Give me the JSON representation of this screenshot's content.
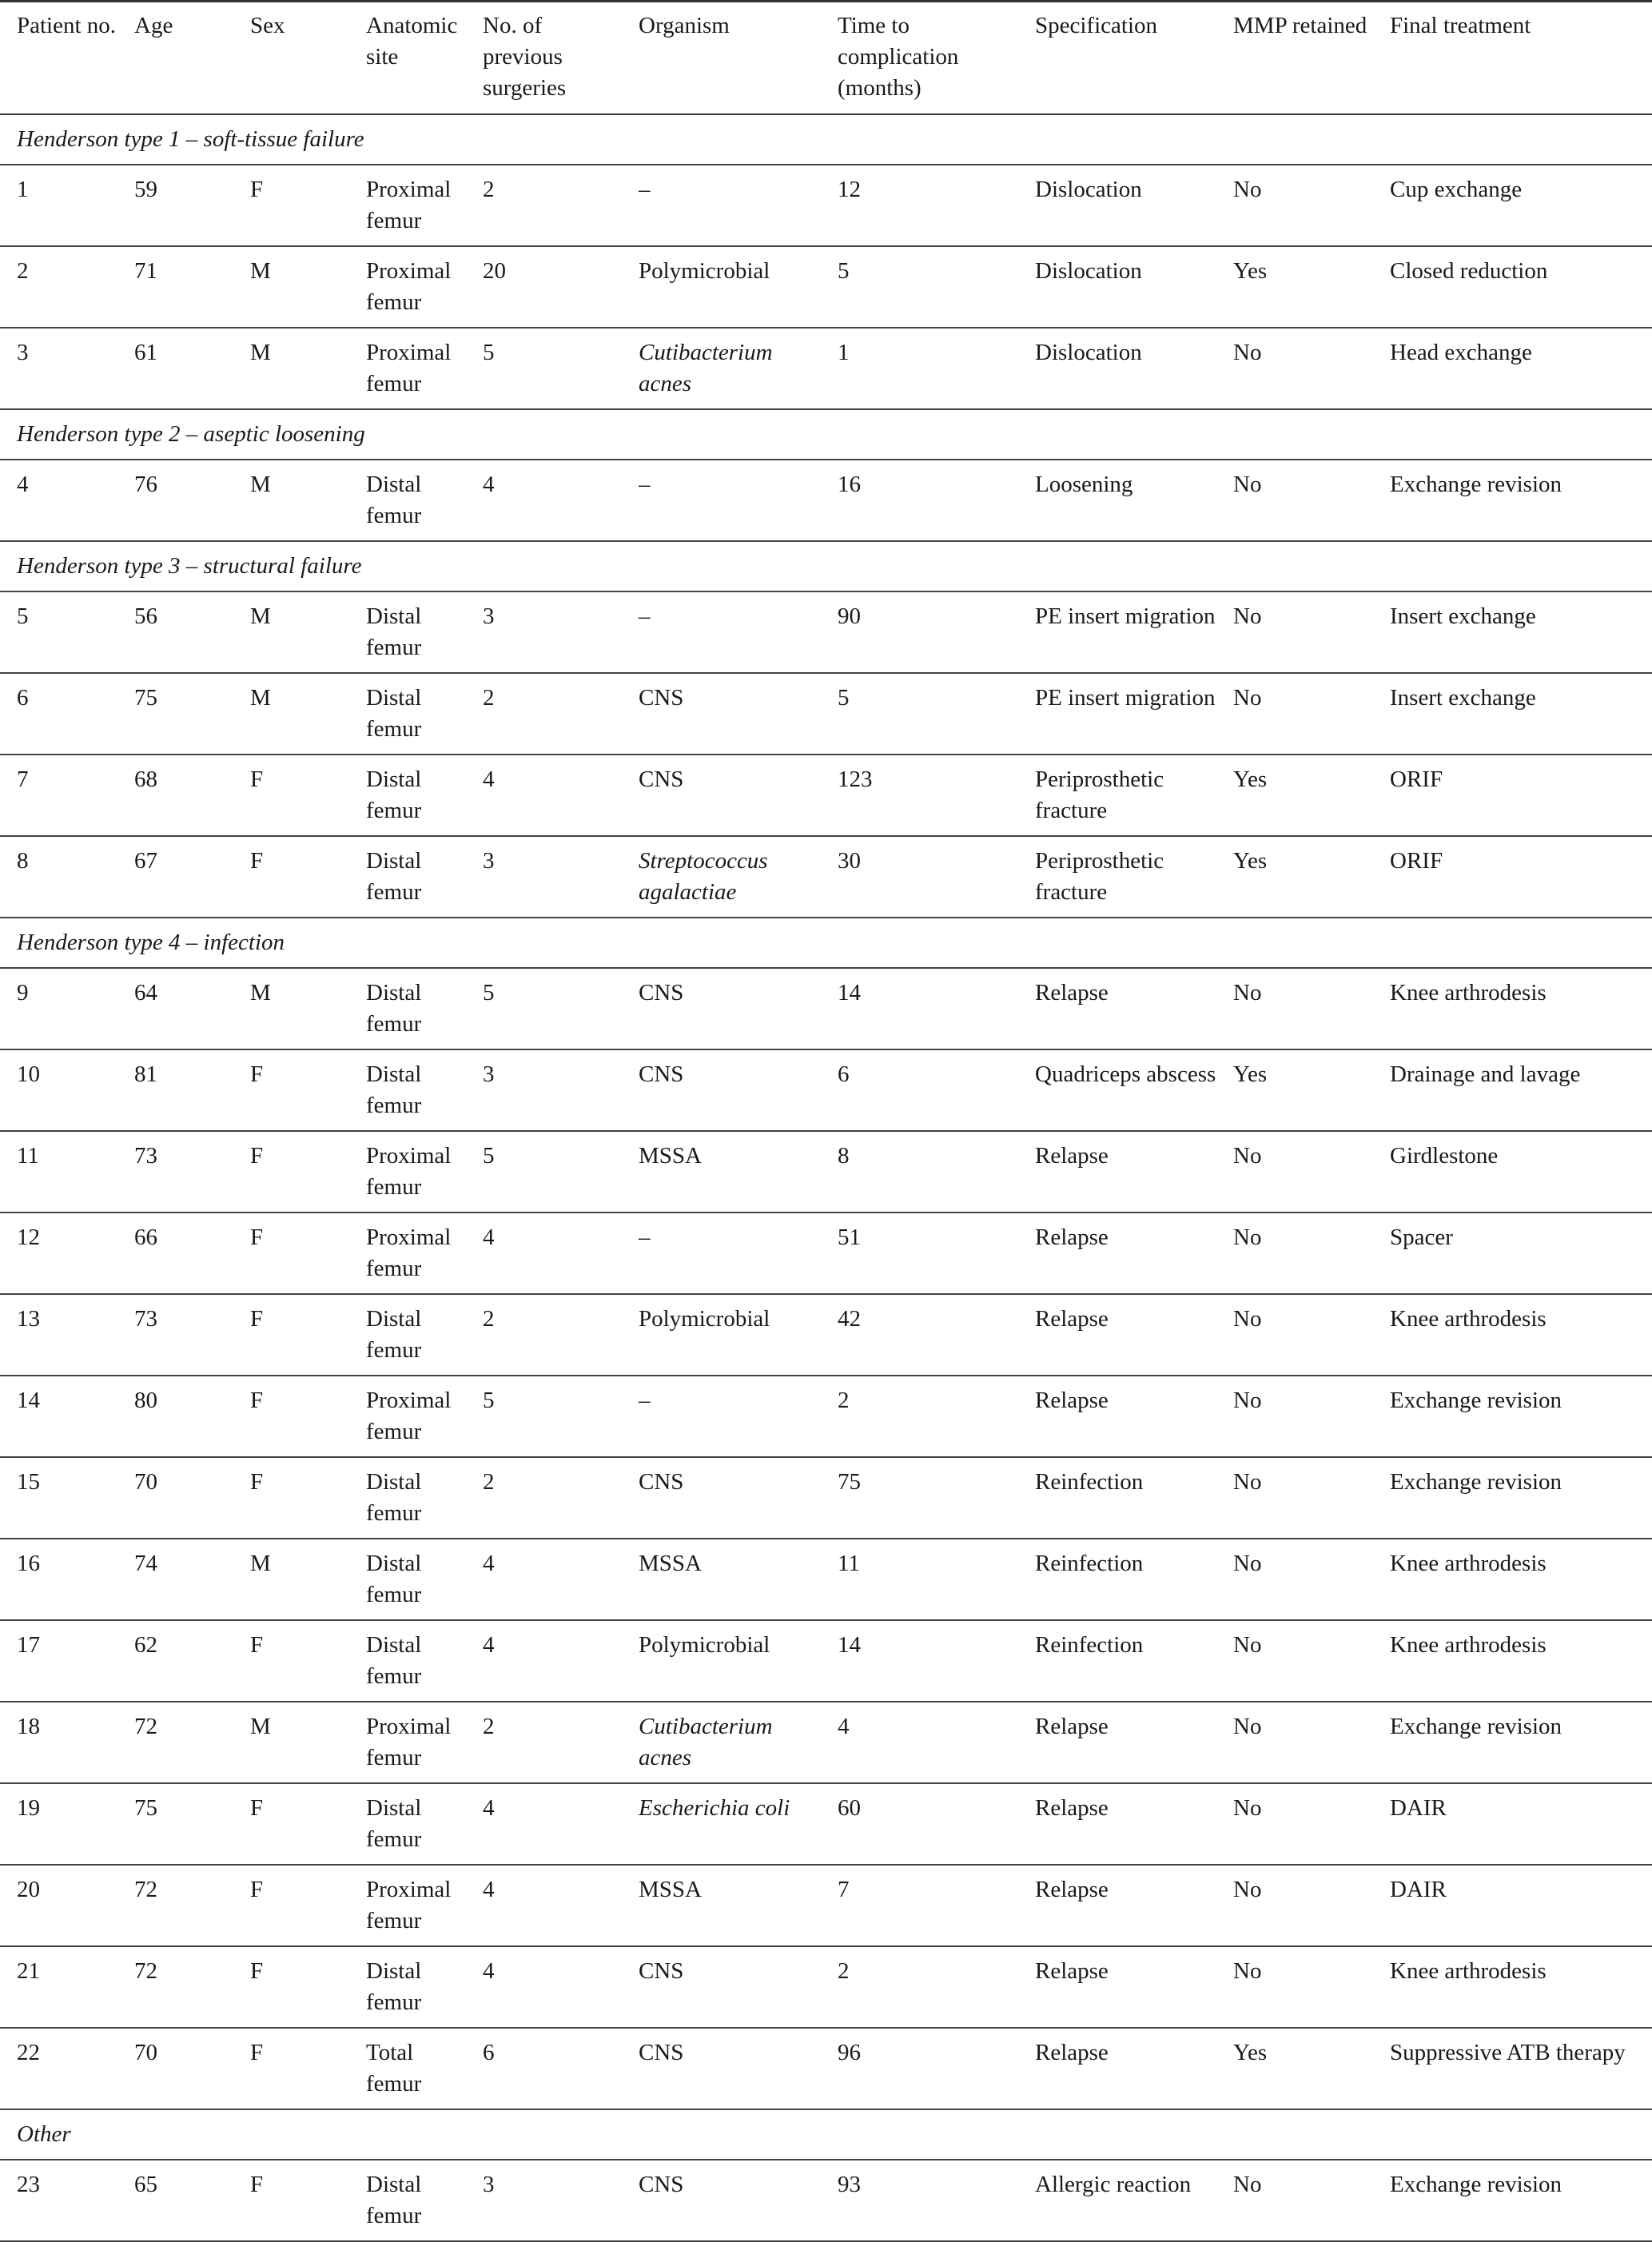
{
  "columns": [
    "Patient no.",
    "Age",
    "Sex",
    "Anatomic site",
    "No. of previous surgeries",
    "Organism",
    "Time to complication (months)",
    "Specification",
    "MMP retained",
    "Final treatment"
  ],
  "groups": [
    {
      "title": "Henderson type 1 – soft-tissue failure",
      "rows": [
        {
          "cells": [
            "1",
            "59",
            "F",
            "Proximal femur",
            "2",
            "–",
            "12",
            "Dislocation",
            "No",
            "Cup exchange"
          ],
          "organism_italic": false
        },
        {
          "cells": [
            "2",
            "71",
            "M",
            "Proximal femur",
            "20",
            "Polymicrobial",
            "5",
            "Dislocation",
            "Yes",
            "Closed reduction"
          ],
          "organism_italic": false
        },
        {
          "cells": [
            "3",
            "61",
            "M",
            "Proximal femur",
            "5",
            "Cutibacterium acnes",
            "1",
            "Dislocation",
            "No",
            "Head exchange"
          ],
          "organism_italic": true
        }
      ]
    },
    {
      "title": "Henderson type 2 – aseptic loosening",
      "rows": [
        {
          "cells": [
            "4",
            "76",
            "M",
            "Distal femur",
            "4",
            "–",
            "16",
            "Loosening",
            "No",
            "Exchange revision"
          ],
          "organism_italic": false
        }
      ]
    },
    {
      "title": "Henderson type 3 – structural failure",
      "rows": [
        {
          "cells": [
            "5",
            "56",
            "M",
            "Distal femur",
            "3",
            "–",
            "90",
            "PE insert migration",
            "No",
            "Insert exchange"
          ],
          "organism_italic": false
        },
        {
          "cells": [
            "6",
            "75",
            "M",
            "Distal femur",
            "2",
            "CNS",
            "5",
            "PE insert migration",
            "No",
            "Insert exchange"
          ],
          "organism_italic": false
        },
        {
          "cells": [
            "7",
            "68",
            "F",
            "Distal femur",
            "4",
            "CNS",
            "123",
            "Periprosthetic fracture",
            "Yes",
            "ORIF"
          ],
          "organism_italic": false
        },
        {
          "cells": [
            "8",
            "67",
            "F",
            "Distal femur",
            "3",
            "Streptococcus agalactiae",
            "30",
            "Periprosthetic fracture",
            "Yes",
            "ORIF"
          ],
          "organism_italic": true
        }
      ]
    },
    {
      "title": "Henderson type 4 – infection",
      "rows": [
        {
          "cells": [
            "9",
            "64",
            "M",
            "Distal femur",
            "5",
            "CNS",
            "14",
            "Relapse",
            "No",
            "Knee arthrodesis"
          ],
          "organism_italic": false
        },
        {
          "cells": [
            "10",
            "81",
            "F",
            "Distal femur",
            "3",
            "CNS",
            "6",
            "Quadriceps abscess",
            "Yes",
            "Drainage and lavage"
          ],
          "organism_italic": false
        },
        {
          "cells": [
            "11",
            "73",
            "F",
            "Proximal femur",
            "5",
            "MSSA",
            "8",
            "Relapse",
            "No",
            "Girdlestone"
          ],
          "organism_italic": false
        },
        {
          "cells": [
            "12",
            "66",
            "F",
            "Proximal femur",
            "4",
            "–",
            "51",
            "Relapse",
            "No",
            "Spacer"
          ],
          "organism_italic": false
        },
        {
          "cells": [
            "13",
            "73",
            "F",
            "Distal femur",
            "2",
            "Polymicrobial",
            "42",
            "Relapse",
            "No",
            "Knee arthrodesis"
          ],
          "organism_italic": false
        },
        {
          "cells": [
            "14",
            "80",
            "F",
            "Proximal femur",
            "5",
            "–",
            "2",
            "Relapse",
            "No",
            "Exchange revision"
          ],
          "organism_italic": false
        },
        {
          "cells": [
            "15",
            "70",
            "F",
            "Distal femur",
            "2",
            "CNS",
            "75",
            "Reinfection",
            "No",
            "Exchange revision"
          ],
          "organism_italic": false
        },
        {
          "cells": [
            "16",
            "74",
            "M",
            "Distal femur",
            "4",
            "MSSA",
            "11",
            "Reinfection",
            "No",
            "Knee arthrodesis"
          ],
          "organism_italic": false
        },
        {
          "cells": [
            "17",
            "62",
            "F",
            "Distal femur",
            "4",
            "Polymicrobial",
            "14",
            "Reinfection",
            "No",
            "Knee arthrodesis"
          ],
          "organism_italic": false
        },
        {
          "cells": [
            "18",
            "72",
            "M",
            "Proximal femur",
            "2",
            "Cutibacterium acnes",
            "4",
            "Relapse",
            "No",
            "Exchange revision"
          ],
          "organism_italic": true
        },
        {
          "cells": [
            "19",
            "75",
            "F",
            "Distal femur",
            "4",
            "Escherichia coli",
            "60",
            "Relapse",
            "No",
            "DAIR"
          ],
          "organism_italic": true
        },
        {
          "cells": [
            "20",
            "72",
            "F",
            "Proximal femur",
            "4",
            "MSSA",
            "7",
            "Relapse",
            "No",
            "DAIR"
          ],
          "organism_italic": false
        },
        {
          "cells": [
            "21",
            "72",
            "F",
            "Distal femur",
            "4",
            "CNS",
            "2",
            "Relapse",
            "No",
            "Knee arthrodesis"
          ],
          "organism_italic": false
        },
        {
          "cells": [
            "22",
            "70",
            "F",
            "Total femur",
            "6",
            "CNS",
            "96",
            "Relapse",
            "Yes",
            "Suppressive ATB therapy"
          ],
          "organism_italic": false
        }
      ]
    },
    {
      "title": "Other",
      "rows": [
        {
          "cells": [
            "23",
            "65",
            "F",
            "Distal femur",
            "3",
            "CNS",
            "93",
            "Allergic reaction",
            "No",
            "Exchange revision"
          ],
          "organism_italic": false
        }
      ]
    }
  ]
}
